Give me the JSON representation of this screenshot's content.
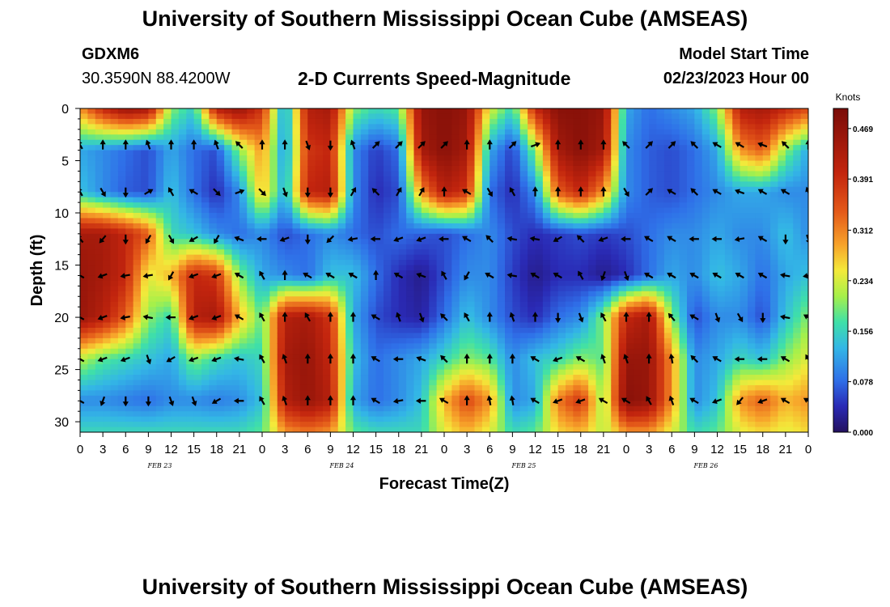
{
  "page": {
    "title_top": "University of Southern Mississippi Ocean Cube (AMSEAS)",
    "title_bottom": "University of Southern Mississippi Ocean Cube (AMSEAS)",
    "station_id": "GDXM6",
    "station_coords": "30.3590N  88.4200W",
    "subtitle": "2-D Currents Speed-Magnitude",
    "model_start_label": "Model Start Time",
    "model_start_value": "02/23/2023 Hour 00"
  },
  "chart_data": {
    "type": "heatmap",
    "title": "2-D Currents Speed-Magnitude",
    "xlabel": "Forecast Time(Z)",
    "ylabel": "Depth (ft)",
    "x_range_hours": [
      0,
      96
    ],
    "y_range_ft": [
      0,
      31
    ],
    "x_tick_labels": [
      "0",
      "3",
      "6",
      "9",
      "12",
      "15",
      "18",
      "21",
      "0",
      "3",
      "6",
      "9",
      "12",
      "15",
      "18",
      "21",
      "0",
      "3",
      "6",
      "9",
      "12",
      "15",
      "18",
      "21",
      "0",
      "3",
      "6",
      "9",
      "12",
      "15",
      "18",
      "21",
      "0"
    ],
    "date_labels": [
      {
        "text": "FEB 23",
        "hour": 10.5
      },
      {
        "text": "FEB 24",
        "hour": 34.5
      },
      {
        "text": "FEB 25",
        "hour": 58.5
      },
      {
        "text": "FEB 26",
        "hour": 82.5
      }
    ],
    "y_ticks": [
      0,
      5,
      10,
      15,
      20,
      25,
      30
    ],
    "colorbar": {
      "unit": "Knots",
      "min": 0.0,
      "max": 0.5,
      "tick_values": [
        "0.000",
        "0.078",
        "0.156",
        "0.234",
        "0.312",
        "0.391",
        "0.469"
      ]
    },
    "depth_levels_ft": [
      0,
      4,
      8,
      12,
      16,
      20,
      24,
      28,
      31
    ],
    "time_hours": [
      0,
      3,
      6,
      9,
      12,
      15,
      18,
      21,
      24,
      27,
      30,
      33,
      36,
      39,
      42,
      45,
      48,
      51,
      54,
      57,
      60,
      63,
      66,
      69,
      72,
      75,
      78,
      81,
      84,
      87,
      90,
      93,
      96
    ],
    "speed_knots": [
      [
        0.3,
        0.4,
        0.46,
        0.44,
        0.2,
        0.15,
        0.42,
        0.46,
        0.38,
        0.1,
        0.42,
        0.44,
        0.2,
        0.16,
        0.18,
        0.46,
        0.48,
        0.46,
        0.24,
        0.16,
        0.4,
        0.48,
        0.48,
        0.46,
        0.12,
        0.08,
        0.1,
        0.12,
        0.2,
        0.42,
        0.44,
        0.4,
        0.36
      ],
      [
        0.12,
        0.1,
        0.08,
        0.06,
        0.12,
        0.08,
        0.06,
        0.2,
        0.3,
        0.1,
        0.38,
        0.4,
        0.1,
        0.05,
        0.08,
        0.44,
        0.48,
        0.44,
        0.12,
        0.05,
        0.2,
        0.44,
        0.48,
        0.44,
        0.1,
        0.07,
        0.06,
        0.08,
        0.12,
        0.3,
        0.34,
        0.2,
        0.12
      ],
      [
        0.14,
        0.1,
        0.07,
        0.06,
        0.14,
        0.08,
        0.04,
        0.1,
        0.28,
        0.12,
        0.4,
        0.42,
        0.1,
        0.04,
        0.06,
        0.3,
        0.42,
        0.38,
        0.08,
        0.04,
        0.1,
        0.34,
        0.4,
        0.3,
        0.1,
        0.07,
        0.06,
        0.08,
        0.1,
        0.12,
        0.12,
        0.1,
        0.1
      ],
      [
        0.44,
        0.44,
        0.4,
        0.34,
        0.16,
        0.14,
        0.1,
        0.08,
        0.1,
        0.06,
        0.08,
        0.1,
        0.08,
        0.06,
        0.08,
        0.07,
        0.06,
        0.08,
        0.1,
        0.06,
        0.04,
        0.05,
        0.06,
        0.05,
        0.06,
        0.08,
        0.1,
        0.1,
        0.12,
        0.1,
        0.1,
        0.14,
        0.1
      ],
      [
        0.46,
        0.44,
        0.4,
        0.24,
        0.28,
        0.4,
        0.38,
        0.2,
        0.12,
        0.1,
        0.08,
        0.14,
        0.14,
        0.08,
        0.04,
        0.02,
        0.06,
        0.1,
        0.1,
        0.05,
        0.02,
        0.04,
        0.04,
        0.02,
        0.04,
        0.08,
        0.12,
        0.1,
        0.14,
        0.12,
        0.08,
        0.12,
        0.14
      ],
      [
        0.46,
        0.42,
        0.34,
        0.2,
        0.16,
        0.42,
        0.44,
        0.28,
        0.18,
        0.42,
        0.44,
        0.38,
        0.12,
        0.06,
        0.04,
        0.03,
        0.08,
        0.14,
        0.1,
        0.06,
        0.04,
        0.08,
        0.1,
        0.2,
        0.4,
        0.44,
        0.2,
        0.06,
        0.1,
        0.1,
        0.06,
        0.14,
        0.2
      ],
      [
        0.22,
        0.18,
        0.16,
        0.14,
        0.12,
        0.2,
        0.16,
        0.14,
        0.16,
        0.44,
        0.46,
        0.4,
        0.14,
        0.08,
        0.1,
        0.12,
        0.16,
        0.2,
        0.18,
        0.1,
        0.14,
        0.16,
        0.2,
        0.18,
        0.46,
        0.46,
        0.3,
        0.1,
        0.12,
        0.16,
        0.14,
        0.2,
        0.24
      ],
      [
        0.1,
        0.1,
        0.09,
        0.08,
        0.1,
        0.1,
        0.09,
        0.1,
        0.14,
        0.42,
        0.46,
        0.42,
        0.12,
        0.08,
        0.1,
        0.14,
        0.28,
        0.36,
        0.3,
        0.1,
        0.12,
        0.32,
        0.38,
        0.2,
        0.48,
        0.46,
        0.3,
        0.1,
        0.14,
        0.3,
        0.34,
        0.28,
        0.3
      ],
      [
        0.16,
        0.16,
        0.16,
        0.16,
        0.16,
        0.16,
        0.16,
        0.16,
        0.18,
        0.3,
        0.32,
        0.3,
        0.18,
        0.16,
        0.16,
        0.16,
        0.24,
        0.28,
        0.24,
        0.16,
        0.18,
        0.26,
        0.28,
        0.22,
        0.3,
        0.3,
        0.24,
        0.16,
        0.18,
        0.24,
        0.26,
        0.24,
        0.26
      ]
    ],
    "vectors": [
      {
        "depth": 3.5,
        "time": [
          0,
          3,
          6,
          9,
          12,
          15,
          18,
          21,
          24,
          27,
          30,
          33,
          36,
          39,
          42,
          45,
          48,
          51,
          54,
          57,
          60,
          63,
          66,
          69,
          72,
          75,
          78,
          81,
          84,
          87,
          90,
          93,
          96
        ],
        "dir_deg": [
          -30,
          0,
          0,
          -20,
          0,
          0,
          -20,
          -45,
          0,
          0,
          160,
          180,
          -20,
          45,
          45,
          45,
          45,
          0,
          0,
          45,
          70,
          0,
          0,
          0,
          -45,
          45,
          45,
          -45,
          -60,
          -60,
          -70,
          -45,
          0
        ]
      },
      {
        "depth": 8,
        "time": [
          0,
          3,
          6,
          9,
          12,
          15,
          18,
          21,
          24,
          27,
          30,
          33,
          36,
          39,
          42,
          45,
          48,
          51,
          54,
          57,
          60,
          63,
          66,
          69,
          72,
          75,
          78,
          81,
          84,
          87,
          90,
          93,
          96
        ],
        "dir_deg": [
          -30,
          150,
          180,
          60,
          -30,
          -60,
          135,
          70,
          135,
          160,
          180,
          180,
          30,
          -45,
          30,
          30,
          0,
          -60,
          150,
          -30,
          0,
          0,
          0,
          0,
          150,
          45,
          -60,
          -45,
          -60,
          -70,
          -60,
          -60,
          -20
        ]
      },
      {
        "depth": 12.5,
        "time": [
          0,
          3,
          6,
          9,
          12,
          15,
          18,
          21,
          24,
          27,
          30,
          33,
          36,
          39,
          42,
          45,
          48,
          51,
          54,
          57,
          60,
          63,
          66,
          69,
          72,
          75,
          78,
          81,
          84,
          87,
          90,
          93,
          96
        ],
        "dir_deg": [
          -40,
          -140,
          180,
          -150,
          150,
          -120,
          -150,
          -70,
          -90,
          -110,
          180,
          -135,
          -100,
          -90,
          -110,
          -110,
          -90,
          -60,
          -45,
          -80,
          -80,
          -120,
          -45,
          -110,
          -90,
          -60,
          -60,
          -90,
          -90,
          -100,
          -60,
          180,
          160
        ]
      },
      {
        "depth": 16,
        "time": [
          0,
          3,
          6,
          9,
          12,
          15,
          18,
          21,
          24,
          27,
          30,
          33,
          36,
          39,
          42,
          45,
          48,
          51,
          54,
          57,
          60,
          63,
          66,
          69,
          72,
          75,
          78,
          81,
          84,
          87,
          90,
          93,
          96
        ],
        "dir_deg": [
          -60,
          -110,
          -100,
          -100,
          -150,
          -110,
          -110,
          -60,
          -30,
          0,
          -60,
          -60,
          -60,
          0,
          -60,
          -70,
          -30,
          -150,
          -60,
          -80,
          -60,
          -60,
          -30,
          -160,
          160,
          -60,
          -60,
          -60,
          -60,
          -60,
          -60,
          -80,
          -100
        ]
      },
      {
        "depth": 20,
        "time": [
          0,
          3,
          6,
          9,
          12,
          15,
          18,
          21,
          24,
          27,
          30,
          33,
          36,
          39,
          42,
          45,
          48,
          51,
          54,
          57,
          60,
          63,
          66,
          69,
          72,
          75,
          78,
          81,
          84,
          87,
          90,
          93,
          96
        ],
        "dir_deg": [
          -60,
          -110,
          -100,
          -80,
          -90,
          -110,
          -110,
          -60,
          -30,
          0,
          -30,
          0,
          0,
          -60,
          -20,
          160,
          -45,
          -30,
          0,
          -20,
          0,
          180,
          160,
          -30,
          0,
          0,
          -40,
          -60,
          160,
          150,
          180,
          -80,
          -60
        ]
      },
      {
        "depth": 24,
        "time": [
          0,
          3,
          6,
          9,
          12,
          15,
          18,
          21,
          24,
          27,
          30,
          33,
          36,
          39,
          42,
          45,
          48,
          51,
          54,
          57,
          60,
          63,
          66,
          69,
          72,
          75,
          78,
          81,
          84,
          87,
          90,
          93,
          96
        ],
        "dir_deg": [
          -60,
          -110,
          -110,
          160,
          -120,
          -110,
          -110,
          -80,
          -30,
          -20,
          0,
          0,
          0,
          -60,
          -90,
          -70,
          -45,
          0,
          0,
          0,
          -60,
          -110,
          -60,
          -20,
          -20,
          0,
          -10,
          -45,
          -60,
          -90,
          -90,
          -60,
          -30
        ]
      },
      {
        "depth": 28,
        "time": [
          0,
          3,
          6,
          9,
          12,
          15,
          18,
          21,
          24,
          27,
          30,
          33,
          36,
          39,
          42,
          45,
          48,
          51,
          54,
          57,
          60,
          63,
          66,
          69,
          72,
          75,
          78,
          81,
          84,
          87,
          90,
          93,
          96
        ],
        "dir_deg": [
          -60,
          -160,
          180,
          180,
          160,
          160,
          -120,
          -90,
          -30,
          -20,
          0,
          0,
          0,
          -60,
          -100,
          -90,
          -60,
          0,
          -10,
          -10,
          -60,
          -110,
          -110,
          -60,
          -60,
          -30,
          -20,
          -60,
          -110,
          -140,
          -110,
          -60,
          -60
        ]
      }
    ]
  }
}
